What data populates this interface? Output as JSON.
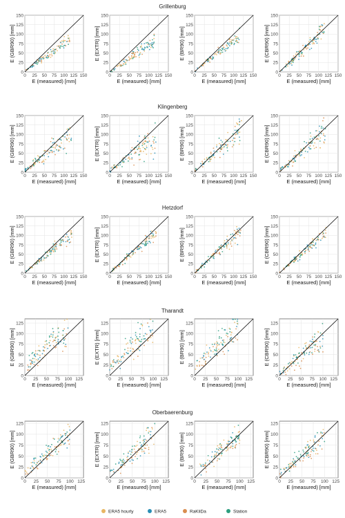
{
  "chart_data": {
    "type": "scatter",
    "legend_position": "bottom",
    "grid": true,
    "reference_line": "1:1 identity line",
    "x_label": "E (measured) [mm]",
    "y_labels": [
      "E (GBR90) [mm]",
      "E (EXTR) [mm]",
      "E (BR90) [mm]",
      "E (CBR90) [mm]"
    ],
    "colors": {
      "ERA5 hourly": "#e8b663",
      "ERA5": "#2a8fb5",
      "RaKliDa": "#d98d4f",
      "Station": "#2d9e7f"
    },
    "legend": [
      "ERA5 hourly",
      "ERA5",
      "RaKliDa",
      "Station"
    ],
    "sites": [
      {
        "name": "Grillenburg",
        "xlim": [
          0,
          150
        ],
        "ylim": [
          0,
          150
        ],
        "xticks": [
          0,
          25,
          50,
          75,
          100,
          125,
          150
        ],
        "yticks": [
          0,
          25,
          50,
          75,
          100,
          125,
          150
        ],
        "xmax_data": 115,
        "models": [
          {
            "name": "GBR90",
            "slope": 0.72,
            "offset": 2,
            "scatter": 0.1,
            "base": 2
          },
          {
            "name": "EXTR",
            "slope": 0.76,
            "offset": -2,
            "scatter": 0.12,
            "base": 2
          },
          {
            "name": "BR90",
            "slope": 0.85,
            "offset": 0,
            "scatter": 0.09,
            "base": 2
          },
          {
            "name": "CBR90",
            "slope": 0.98,
            "offset": 0,
            "scatter": 0.13,
            "base": 3
          }
        ]
      },
      {
        "name": "Klingenberg",
        "xlim": [
          0,
          150
        ],
        "ylim": [
          0,
          150
        ],
        "xticks": [
          0,
          25,
          50,
          75,
          100,
          125,
          150
        ],
        "yticks": [
          0,
          25,
          50,
          75,
          100,
          125,
          150
        ],
        "xmax_data": 120,
        "models": [
          {
            "name": "GBR90",
            "slope": 0.8,
            "offset": 5,
            "scatter": 0.22,
            "base": 3
          },
          {
            "name": "EXTR",
            "slope": 0.76,
            "offset": 4,
            "scatter": 0.24,
            "base": 3
          },
          {
            "name": "BR90",
            "slope": 0.9,
            "offset": 4,
            "scatter": 0.2,
            "base": 3
          },
          {
            "name": "CBR90",
            "slope": 0.86,
            "offset": 5,
            "scatter": 0.2,
            "base": 3
          }
        ]
      },
      {
        "name": "Hetzdorf",
        "xlim": [
          0,
          150
        ],
        "ylim": [
          0,
          150
        ],
        "xticks": [
          0,
          25,
          50,
          75,
          100,
          125,
          150
        ],
        "yticks": [
          0,
          25,
          50,
          75,
          100,
          125,
          150
        ],
        "xmax_data": 120,
        "models": [
          {
            "name": "GBR90",
            "slope": 0.82,
            "offset": 3,
            "scatter": 0.1,
            "base": 2
          },
          {
            "name": "EXTR",
            "slope": 0.88,
            "offset": 2,
            "scatter": 0.1,
            "base": 2
          },
          {
            "name": "BR90",
            "slope": 0.95,
            "offset": 1,
            "scatter": 0.12,
            "base": 2
          },
          {
            "name": "CBR90",
            "slope": 0.88,
            "offset": 2,
            "scatter": 0.08,
            "base": 2
          }
        ]
      },
      {
        "name": "Tharandt",
        "xlim": [
          0,
          135
        ],
        "ylim": [
          0,
          135
        ],
        "xticks": [
          0,
          25,
          50,
          75,
          100,
          125
        ],
        "yticks": [
          0,
          25,
          50,
          75,
          100,
          125
        ],
        "xmax_data": 100,
        "models": [
          {
            "name": "GBR90",
            "slope": 0.95,
            "offset": 22,
            "scatter": 0.2,
            "base": 8
          },
          {
            "name": "EXTR",
            "slope": 0.95,
            "offset": 20,
            "scatter": 0.2,
            "base": 8
          },
          {
            "name": "BR90",
            "slope": 0.95,
            "offset": 20,
            "scatter": 0.2,
            "base": 8
          },
          {
            "name": "CBR90",
            "slope": 0.9,
            "offset": 4,
            "scatter": 0.2,
            "base": 5
          }
        ]
      },
      {
        "name": "Oberbaerenburg",
        "xlim": [
          0,
          130
        ],
        "ylim": [
          0,
          130
        ],
        "xticks": [
          0,
          25,
          50,
          75,
          100,
          125
        ],
        "yticks": [
          0,
          25,
          50,
          75,
          100,
          125
        ],
        "xmax_data": 100,
        "models": [
          {
            "name": "GBR90",
            "slope": 0.88,
            "offset": 14,
            "scatter": 0.15,
            "base": 6
          },
          {
            "name": "EXTR",
            "slope": 0.9,
            "offset": 12,
            "scatter": 0.15,
            "base": 6
          },
          {
            "name": "BR90",
            "slope": 0.9,
            "offset": 10,
            "scatter": 0.15,
            "base": 6
          },
          {
            "name": "CBR90",
            "slope": 0.86,
            "offset": 8,
            "scatter": 0.15,
            "base": 5
          }
        ]
      }
    ]
  }
}
